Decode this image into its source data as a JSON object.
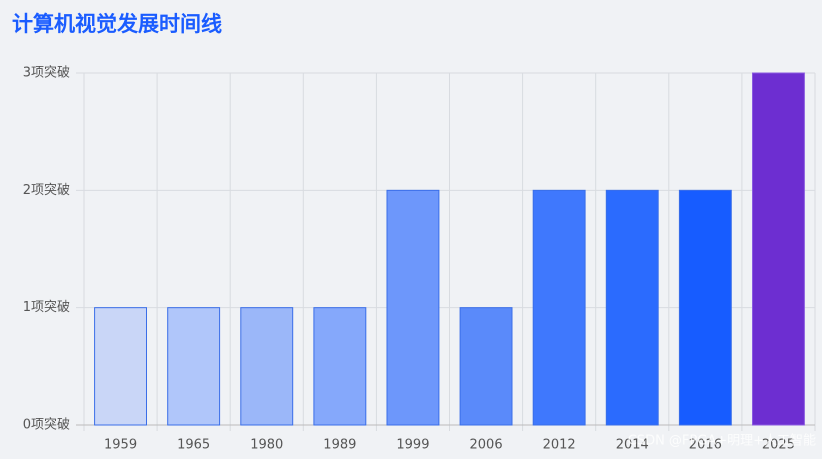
{
  "chart_data": {
    "type": "bar",
    "title": "计算机视觉发展时间线",
    "categories": [
      "1959",
      "1965",
      "1980",
      "1989",
      "1999",
      "2006",
      "2012",
      "2014",
      "2016",
      "2025"
    ],
    "values": [
      1,
      1,
      1,
      1,
      2,
      1,
      2,
      2,
      2,
      3
    ],
    "colors": [
      "#c9d6f7",
      "#b0c6fa",
      "#9bb7f9",
      "#85a8fb",
      "#6d97fb",
      "#5a8afa",
      "#3f78fd",
      "#2b6bfe",
      "#175cff",
      "#6d2ed1"
    ],
    "ylim": [
      0,
      3
    ],
    "yticks": [
      {
        "value": 0,
        "label": "0项突破"
      },
      {
        "value": 1,
        "label": "1项突破"
      },
      {
        "value": 2,
        "label": "2项突破"
      },
      {
        "value": 3,
        "label": "3项突破"
      }
    ],
    "grid": true,
    "watermark": "CSDN @FPGA+明理+人工智能"
  }
}
